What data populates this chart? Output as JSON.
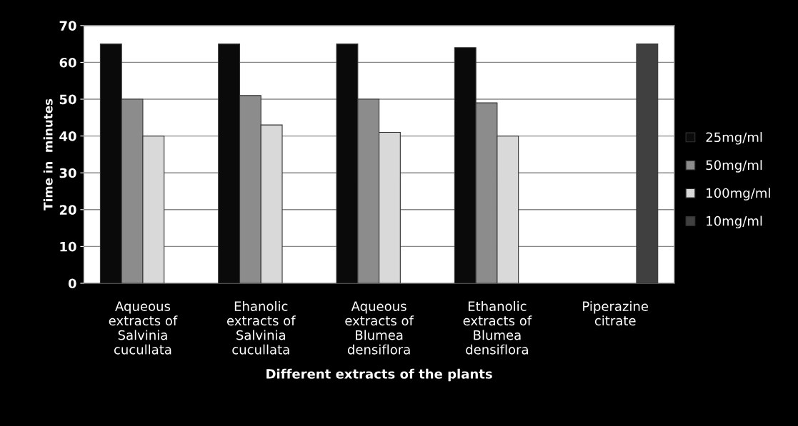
{
  "chart_data": {
    "type": "bar",
    "xlabel": "Different extracts of the plants",
    "ylabel": "Time in  minutes",
    "categories": [
      "Aqueous\nextracts of\nSalvinia\ncucullata",
      "Ehanolic\nextracts of\nSalvinia\ncucullata",
      "Aqueous\nextracts of\nBlumea\ndensiflora",
      "Ethanolic\nextracts of\nBlumea\ndensiflora",
      "Piperazine\ncitrate"
    ],
    "series": [
      {
        "name": "25mg/ml",
        "color": "#0a0a0a",
        "values": [
          65,
          65,
          65,
          64,
          null
        ]
      },
      {
        "name": "50mg/ml",
        "color": "#8c8c8c",
        "values": [
          50,
          51,
          50,
          49,
          null
        ]
      },
      {
        "name": "100mg/ml",
        "color": "#d9d9d9",
        "values": [
          40,
          43,
          41,
          40,
          null
        ]
      },
      {
        "name": "10mg/ml",
        "color": "#404040",
        "values": [
          null,
          null,
          null,
          null,
          65
        ]
      }
    ],
    "ylim": [
      0,
      70
    ],
    "yticks": [
      0,
      10,
      20,
      30,
      40,
      50,
      60,
      70
    ],
    "grid": "y",
    "legend": "right"
  }
}
